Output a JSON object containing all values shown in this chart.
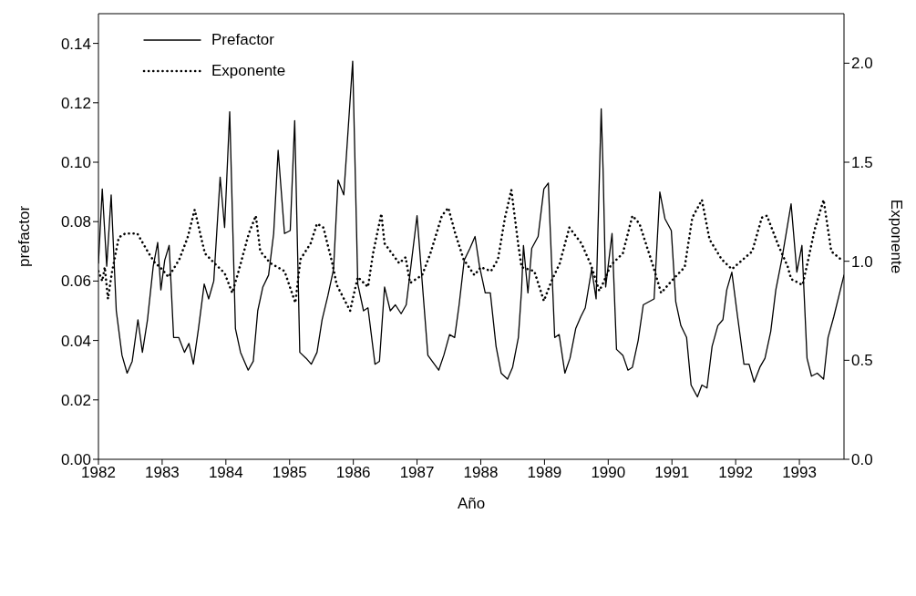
{
  "chart_data": {
    "type": "line",
    "xlabel": "Año",
    "ylabel": "prefactor",
    "y2label": "Exponente",
    "legend": "top left",
    "grid": false,
    "marker": "none",
    "xlim": [
      1982,
      1993.7
    ],
    "xticks": [
      1982,
      1983,
      1984,
      1985,
      1986,
      1987,
      1988,
      1989,
      1990,
      1991,
      1992,
      1993
    ],
    "ylim": [
      0,
      0.15
    ],
    "yticks": [
      {
        "value": 0,
        "label": "0.00"
      },
      {
        "value": 0.02,
        "label": "0.02"
      },
      {
        "value": 0.04,
        "label": "0.04"
      },
      {
        "value": 0.06,
        "label": "0.06"
      },
      {
        "value": 0.08,
        "label": "0.08"
      },
      {
        "value": 0.1,
        "label": "0.10"
      },
      {
        "value": 0.12,
        "label": "0.12"
      },
      {
        "value": 0.14,
        "label": "0.14"
      }
    ],
    "y2lim": [
      0,
      2.25
    ],
    "y2ticks": [
      {
        "value": 0,
        "label": "0.0"
      },
      {
        "value": 0.5,
        "label": "0.5"
      },
      {
        "value": 1,
        "label": "1.0"
      },
      {
        "value": 1.5,
        "label": "1.5"
      },
      {
        "value": 2,
        "label": "2.0"
      }
    ],
    "series": [
      {
        "name": "Prefactor",
        "color": "#000000",
        "line_style": "solid",
        "x": [
          1982.0,
          1982.06,
          1982.13,
          1982.2,
          1982.28,
          1982.37,
          1982.45,
          1982.53,
          1982.62,
          1982.69,
          1982.77,
          1982.86,
          1982.93,
          1982.98,
          1983.04,
          1983.11,
          1983.18,
          1983.26,
          1983.35,
          1983.42,
          1983.49,
          1983.57,
          1983.66,
          1983.73,
          1983.81,
          1983.91,
          1983.98,
          1984.06,
          1984.15,
          1984.23,
          1984.35,
          1984.43,
          1984.5,
          1984.58,
          1984.67,
          1984.75,
          1984.82,
          1984.92,
          1985.01,
          1985.08,
          1985.16,
          1985.26,
          1985.34,
          1985.43,
          1985.51,
          1985.6,
          1985.69,
          1985.76,
          1985.85,
          1985.9,
          1985.99,
          1986.07,
          1986.16,
          1986.23,
          1986.34,
          1986.41,
          1986.49,
          1986.58,
          1986.66,
          1986.75,
          1986.83,
          1987.0,
          1987.17,
          1987.34,
          1987.42,
          1987.51,
          1987.59,
          1987.66,
          1987.74,
          1987.83,
          1987.91,
          1987.98,
          1988.07,
          1988.15,
          1988.24,
          1988.32,
          1988.42,
          1988.5,
          1988.59,
          1988.64,
          1988.67,
          1988.74,
          1988.8,
          1988.9,
          1988.99,
          1989.06,
          1989.16,
          1989.23,
          1989.32,
          1989.4,
          1989.49,
          1989.57,
          1989.64,
          1989.74,
          1989.81,
          1989.89,
          1989.92,
          1989.96,
          1990.06,
          1990.13,
          1990.23,
          1990.31,
          1990.38,
          1990.47,
          1990.55,
          1990.72,
          1990.81,
          1990.89,
          1990.99,
          1991.06,
          1991.14,
          1991.23,
          1991.3,
          1991.4,
          1991.47,
          1991.55,
          1991.63,
          1991.72,
          1991.8,
          1991.86,
          1991.94,
          1992.03,
          1992.13,
          1992.21,
          1992.29,
          1992.38,
          1992.46,
          1992.55,
          1992.63,
          1992.73,
          1992.87,
          1992.96,
          1993.04,
          1993.12,
          1993.19,
          1993.28,
          1993.38,
          1993.45,
          1993.54,
          1993.7
        ],
        "values": [
          0.066,
          0.091,
          0.065,
          0.089,
          0.05,
          0.035,
          0.029,
          0.033,
          0.047,
          0.036,
          0.047,
          0.065,
          0.073,
          0.057,
          0.067,
          0.072,
          0.041,
          0.041,
          0.036,
          0.039,
          0.032,
          0.044,
          0.059,
          0.054,
          0.06,
          0.095,
          0.078,
          0.117,
          0.044,
          0.036,
          0.03,
          0.033,
          0.05,
          0.058,
          0.062,
          0.076,
          0.104,
          0.076,
          0.077,
          0.114,
          0.036,
          0.034,
          0.032,
          0.036,
          0.047,
          0.055,
          0.064,
          0.094,
          0.089,
          0.105,
          0.134,
          0.059,
          0.05,
          0.051,
          0.032,
          0.033,
          0.058,
          0.05,
          0.052,
          0.049,
          0.052,
          0.082,
          0.035,
          0.03,
          0.035,
          0.042,
          0.041,
          0.052,
          0.067,
          0.071,
          0.075,
          0.065,
          0.056,
          0.056,
          0.038,
          0.029,
          0.027,
          0.031,
          0.041,
          0.057,
          0.072,
          0.056,
          0.071,
          0.075,
          0.091,
          0.093,
          0.041,
          0.042,
          0.029,
          0.034,
          0.044,
          0.048,
          0.051,
          0.064,
          0.054,
          0.118,
          0.097,
          0.058,
          0.076,
          0.037,
          0.035,
          0.03,
          0.031,
          0.04,
          0.052,
          0.054,
          0.09,
          0.081,
          0.077,
          0.053,
          0.045,
          0.041,
          0.025,
          0.021,
          0.025,
          0.024,
          0.038,
          0.045,
          0.047,
          0.057,
          0.063,
          0.048,
          0.032,
          0.032,
          0.026,
          0.031,
          0.034,
          0.043,
          0.057,
          0.068,
          0.086,
          0.063,
          0.072,
          0.034,
          0.028,
          0.029,
          0.027,
          0.041,
          0.048,
          0.062
        ]
      },
      {
        "name": "Exponente",
        "color": "#000000",
        "line_style": "dotted",
        "axis": "y2",
        "x": [
          1982.0,
          1982.06,
          1982.1,
          1982.15,
          1982.21,
          1982.32,
          1982.42,
          1982.61,
          1982.79,
          1982.89,
          1982.97,
          1983.1,
          1983.27,
          1983.4,
          1983.51,
          1983.67,
          1983.82,
          1983.98,
          1984.1,
          1984.2,
          1984.36,
          1984.47,
          1984.54,
          1984.7,
          1984.92,
          1985.09,
          1985.17,
          1985.33,
          1985.43,
          1985.53,
          1985.67,
          1985.74,
          1985.95,
          1986.07,
          1986.23,
          1986.31,
          1986.44,
          1986.49,
          1986.72,
          1986.82,
          1986.89,
          1987.08,
          1987.21,
          1987.39,
          1987.49,
          1987.6,
          1987.73,
          1987.9,
          1988.0,
          1988.16,
          1988.27,
          1988.38,
          1988.48,
          1988.59,
          1988.64,
          1988.84,
          1988.99,
          1989.11,
          1989.24,
          1989.39,
          1989.58,
          1989.73,
          1989.86,
          1989.92,
          1990.04,
          1990.23,
          1990.34,
          1990.38,
          1990.49,
          1990.71,
          1990.83,
          1991.02,
          1991.2,
          1991.32,
          1991.47,
          1991.59,
          1991.78,
          1991.94,
          1992.26,
          1992.41,
          1992.49,
          1992.67,
          1992.82,
          1992.87,
          1993.05,
          1993.14,
          1993.24,
          1993.38,
          1993.5,
          1993.65
        ],
        "values": [
          0.95,
          0.9,
          0.97,
          0.81,
          0.94,
          1.12,
          1.14,
          1.14,
          1.04,
          0.99,
          0.97,
          0.92,
          1.01,
          1.12,
          1.26,
          1.04,
          0.99,
          0.94,
          0.84,
          0.95,
          1.14,
          1.23,
          1.05,
          0.99,
          0.95,
          0.79,
          1.01,
          1.09,
          1.19,
          1.17,
          0.99,
          0.88,
          0.75,
          0.92,
          0.87,
          1.04,
          1.24,
          1.09,
          0.99,
          1.02,
          0.89,
          0.93,
          1.04,
          1.23,
          1.27,
          1.14,
          1.01,
          0.93,
          0.97,
          0.95,
          1.01,
          1.22,
          1.36,
          1.08,
          0.97,
          0.95,
          0.8,
          0.9,
          0.99,
          1.17,
          1.09,
          0.98,
          0.85,
          0.89,
          0.98,
          1.04,
          1.18,
          1.23,
          1.19,
          0.97,
          0.84,
          0.91,
          0.97,
          1.22,
          1.31,
          1.11,
          1.01,
          0.96,
          1.05,
          1.22,
          1.23,
          1.08,
          0.97,
          0.91,
          0.88,
          1.01,
          1.16,
          1.31,
          1.05,
          1.01
        ]
      }
    ]
  }
}
